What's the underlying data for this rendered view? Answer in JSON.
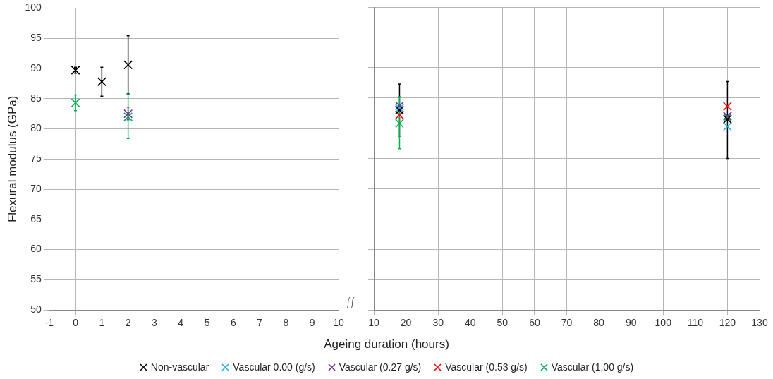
{
  "chart_data": [
    {
      "type": "scatter",
      "ylabel": "Flexural modulus (GPa)",
      "xlim": [
        -1,
        10
      ],
      "xticks": [
        -1,
        0,
        1,
        2,
        3,
        4,
        5,
        6,
        7,
        8,
        9,
        10
      ],
      "ylim": [
        50,
        100
      ],
      "yticks": [
        50,
        55,
        60,
        65,
        70,
        75,
        80,
        85,
        90,
        95,
        100
      ],
      "grid": true,
      "marker": "cross",
      "legend": false,
      "series": [
        {
          "color": "#000000",
          "x": [
            0,
            1,
            2
          ],
          "values": [
            89.7,
            87.8,
            90.6
          ],
          "errors": [
            [
              89.2,
              90.2
            ],
            [
              85.4,
              90.2
            ],
            [
              85.8,
              95.4
            ]
          ]
        },
        {
          "color": "#7030a0",
          "x": [
            2
          ],
          "values": [
            82.5
          ],
          "errors": [
            [
              81.5,
              83.6
            ]
          ]
        },
        {
          "color": "#00b050",
          "x": [
            0,
            2
          ],
          "values": [
            84.3,
            82.0
          ],
          "errors": [
            [
              83.0,
              85.6
            ],
            [
              78.4,
              85.7
            ]
          ]
        }
      ]
    },
    {
      "type": "scatter",
      "xlabel": "Ageing duration (hours)",
      "xlim": [
        10,
        130
      ],
      "xticks": [
        10,
        20,
        30,
        40,
        50,
        60,
        70,
        80,
        90,
        100,
        110,
        120,
        130
      ],
      "ylim": [
        50,
        100
      ],
      "yticks": [
        50,
        55,
        60,
        65,
        70,
        75,
        80,
        85,
        90,
        95,
        100
      ],
      "tick_labels": "x",
      "grid": true,
      "marker": "cross",
      "legend": "bottom",
      "series": [
        {
          "name": "Non-vascular",
          "color": "#000000",
          "x": [
            18,
            120
          ],
          "values": [
            83.0,
            81.5
          ],
          "errors": [
            [
              78.7,
              87.3
            ],
            [
              75.0,
              87.7
            ]
          ]
        },
        {
          "name": "Vascular 0.00 (g/s)",
          "color": "#1fb0e8",
          "x": [
            18,
            120
          ],
          "values": [
            83.3,
            80.3
          ]
        },
        {
          "name": "Vascular (0.27 g/s)",
          "color": "#7030a0",
          "x": [
            18,
            120
          ],
          "values": [
            83.7,
            82.0
          ]
        },
        {
          "name": "Vascular (0.53 g/s)",
          "color": "#ff0000",
          "x": [
            18,
            120
          ],
          "values": [
            82.2,
            83.6
          ]
        },
        {
          "name": "Vascular (1.00 g/s)",
          "color": "#00b050",
          "x": [
            18,
            120
          ],
          "values": [
            80.8,
            81.8
          ],
          "errors": [
            [
              76.6,
              85.2
            ],
            null
          ]
        }
      ]
    }
  ]
}
